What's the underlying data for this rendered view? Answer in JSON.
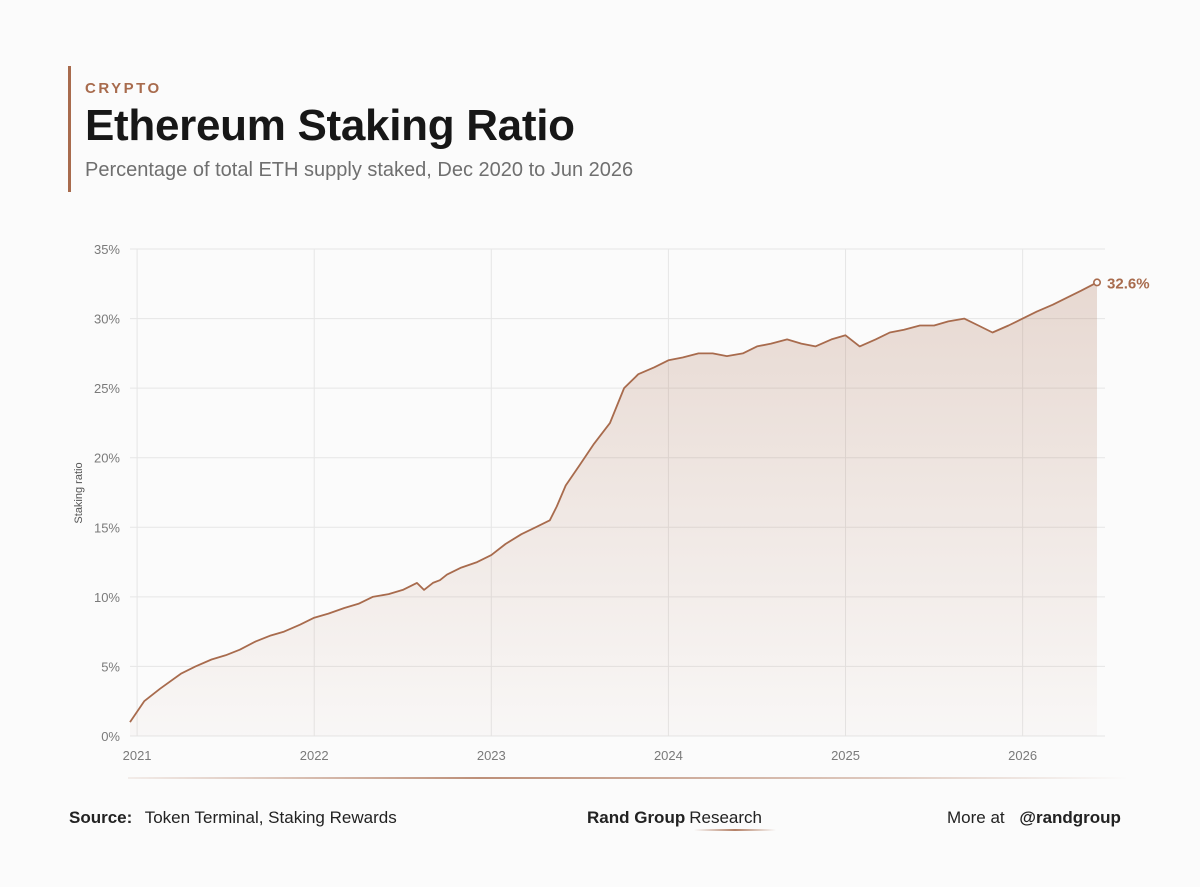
{
  "header": {
    "kicker": "CRYPTO",
    "title": "Ethereum Staking Ratio",
    "subtitle": "Percentage of total ETH supply staked, Dec 2020 to Jun 2026"
  },
  "chart_data": {
    "type": "area",
    "title": "Ethereum Staking Ratio",
    "subtitle": "Percentage of total ETH supply staked, Dec 2020 to Jun 2026",
    "xlabel": "",
    "ylabel": "Staking ratio",
    "ylim": [
      0,
      35
    ],
    "yticks": [
      "0%",
      "5%",
      "10%",
      "15%",
      "20%",
      "25%",
      "30%",
      "35%"
    ],
    "xticks": [
      "2021",
      "2022",
      "2023",
      "2024",
      "2025",
      "2026"
    ],
    "grid": true,
    "line_color": "#a86b4d",
    "end_label": "32.6%",
    "series": [
      {
        "x": [
          2020.96,
          2021.04,
          2021.13,
          2021.25,
          2021.33,
          2021.42,
          2021.5,
          2021.58,
          2021.67,
          2021.75,
          2021.83,
          2021.92,
          2022.0,
          2022.08,
          2022.17,
          2022.25,
          2022.33,
          2022.42,
          2022.5,
          2022.58,
          2022.62,
          2022.67,
          2022.71,
          2022.75,
          2022.83,
          2022.92,
          2023.0,
          2023.08,
          2023.17,
          2023.25,
          2023.33,
          2023.37,
          2023.42,
          2023.5,
          2023.58,
          2023.67,
          2023.75,
          2023.83,
          2023.92,
          2024.0,
          2024.08,
          2024.17,
          2024.25,
          2024.33,
          2024.42,
          2024.5,
          2024.58,
          2024.67,
          2024.75,
          2024.83,
          2024.92,
          2025.0,
          2025.08,
          2025.17,
          2025.25,
          2025.33,
          2025.42,
          2025.5,
          2025.58,
          2025.67,
          2025.75,
          2025.83,
          2025.92,
          2026.0,
          2026.08,
          2026.17,
          2026.25,
          2026.33,
          2026.42
        ],
        "y": [
          1.0,
          2.5,
          3.4,
          4.5,
          5.0,
          5.5,
          5.8,
          6.2,
          6.8,
          7.2,
          7.5,
          8.0,
          8.5,
          8.8,
          9.2,
          9.5,
          10.0,
          10.2,
          10.5,
          11.0,
          10.5,
          11.0,
          11.2,
          11.6,
          12.1,
          12.5,
          13.0,
          13.8,
          14.5,
          15.0,
          15.5,
          16.5,
          18.0,
          19.5,
          21.0,
          22.5,
          25.0,
          26.0,
          26.5,
          27.0,
          27.2,
          27.5,
          27.5,
          27.3,
          27.5,
          28.0,
          28.2,
          28.5,
          28.2,
          28.0,
          28.5,
          28.8,
          28.0,
          28.5,
          29.0,
          29.2,
          29.5,
          29.5,
          29.8,
          30.0,
          29.5,
          29.0,
          29.5,
          30.0,
          30.5,
          31.0,
          31.5,
          32.0,
          32.6
        ]
      }
    ]
  },
  "footer": {
    "source_label": "Source:",
    "source_text": "Token Terminal, Staking Rewards",
    "brand_bold": "Rand Group",
    "brand_regular": "Research",
    "more_label": "More at",
    "handle": "@randgroup"
  }
}
